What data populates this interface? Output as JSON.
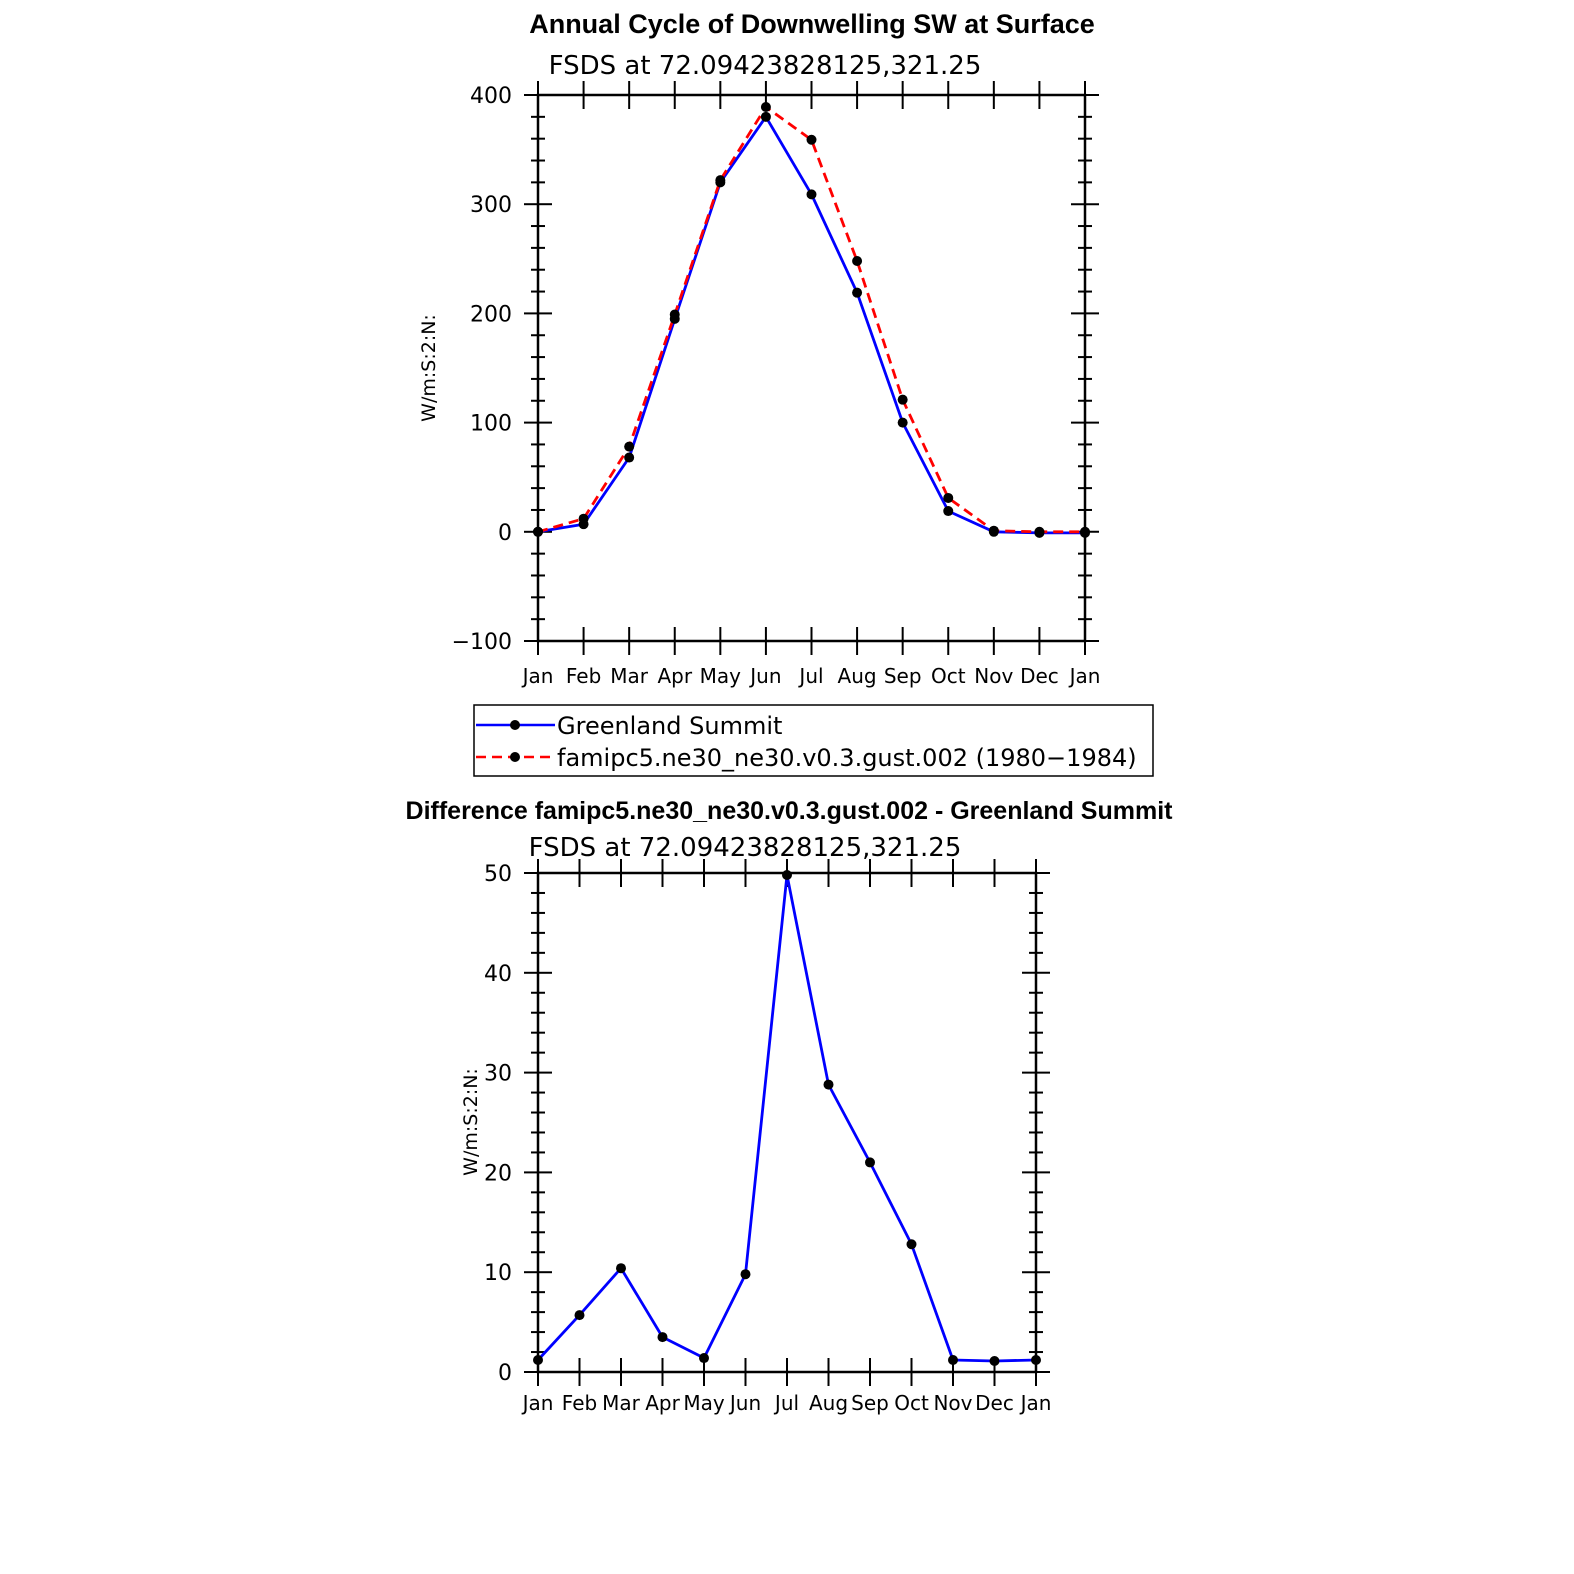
{
  "chart_data": [
    {
      "type": "line",
      "title": "Annual Cycle of Downwelling SW at Surface",
      "subtitle": "FSDS at 72.09423828125,321.25",
      "xlabel": "",
      "ylabel": "W/m:S:2:N:",
      "categories": [
        "Jan",
        "Feb",
        "Mar",
        "Apr",
        "May",
        "Jun",
        "Jul",
        "Aug",
        "Sep",
        "Oct",
        "Nov",
        "Dec",
        "Jan"
      ],
      "ylim": [
        -100,
        400
      ],
      "yticks": [
        -100,
        0,
        100,
        200,
        300,
        400
      ],
      "series": [
        {
          "name": "Greenland Summit",
          "color": "#0000ff",
          "style": "solid",
          "values": [
            0,
            7,
            68,
            195,
            320,
            380,
            309,
            219,
            100,
            19,
            0,
            -1,
            -1
          ]
        },
        {
          "name": "famipc5.ne30_ne30.v0.3.gust.002 (1980−1984)",
          "color": "#ff0000",
          "style": "dashed",
          "values": [
            0,
            12,
            78,
            199,
            322,
            389,
            359,
            248,
            121,
            31,
            1,
            0,
            0
          ]
        }
      ],
      "legend": "bottom",
      "grid": false
    },
    {
      "type": "line",
      "title": "Difference famipc5.ne30_ne30.v0.3.gust.002 - Greenland Summit",
      "subtitle": "FSDS at 72.09423828125,321.25",
      "xlabel": "",
      "ylabel": "W/m:S:2:N:",
      "categories": [
        "Jan",
        "Feb",
        "Mar",
        "Apr",
        "May",
        "Jun",
        "Jul",
        "Aug",
        "Sep",
        "Oct",
        "Nov",
        "Dec",
        "Jan"
      ],
      "ylim": [
        0,
        50
      ],
      "yticks": [
        0,
        10,
        20,
        30,
        40,
        50
      ],
      "series": [
        {
          "color": "#0000ff",
          "style": "solid",
          "values": [
            1.2,
            5.7,
            10.4,
            3.5,
            1.4,
            9.8,
            49.8,
            28.8,
            21.0,
            12.8,
            1.2,
            1.1,
            1.2
          ]
        }
      ],
      "grid": false
    }
  ]
}
